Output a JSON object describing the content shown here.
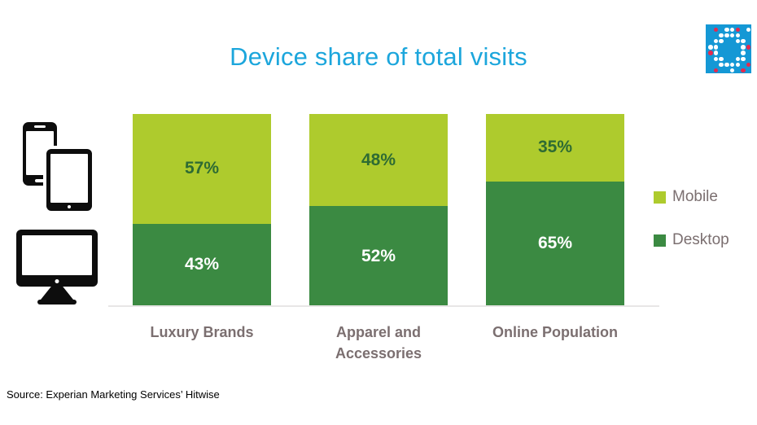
{
  "title": "Device share of total visits",
  "source": "Source: Experian Marketing Services’ Hitwise",
  "colors": {
    "title": "#1ca6dc",
    "category_text": "#7b6f70",
    "legend_text": "#7b6f70",
    "axis_line": "#e8e6e6",
    "mobile_green": "#aecb2d",
    "desktop_green": "#3b8a42"
  },
  "logo": {
    "name": "dotted-square-logo",
    "background": "#1598d5",
    "dot_colors": {
      "w": "#ffffff",
      "r": "#e5294e"
    },
    "grid": [
      ".r.wwr.w",
      "..wwww..",
      ".ww..ww.",
      "ww....wr",
      "rw....w.",
      ".ww..ww.",
      "..wwww.r",
      ".r..w.r."
    ]
  },
  "icons": [
    "smartphone-icon",
    "tablet-icon",
    "desktop-monitor-icon"
  ],
  "legend": [
    {
      "label": "Mobile",
      "color": "#aecb2d"
    },
    {
      "label": "Desktop",
      "color": "#3b8a42"
    }
  ],
  "chart_data": {
    "type": "bar",
    "stacked": true,
    "title": "Device share of total visits",
    "categories": [
      "Luxury Brands",
      "Apparel and Accessories",
      "Online Population"
    ],
    "series": [
      {
        "name": "Mobile",
        "values": [
          57,
          48,
          35
        ],
        "color": "#aecb2d",
        "label_color": "#2e6b33"
      },
      {
        "name": "Desktop",
        "values": [
          43,
          52,
          65
        ],
        "color": "#3b8a42",
        "label_color": "#ffffff"
      }
    ],
    "value_suffix": "%",
    "ylim": [
      0,
      100
    ],
    "xlabel": "",
    "ylabel": "",
    "grid": false,
    "legend_position": "right",
    "source": "Source: Experian Marketing Services’ Hitwise"
  }
}
